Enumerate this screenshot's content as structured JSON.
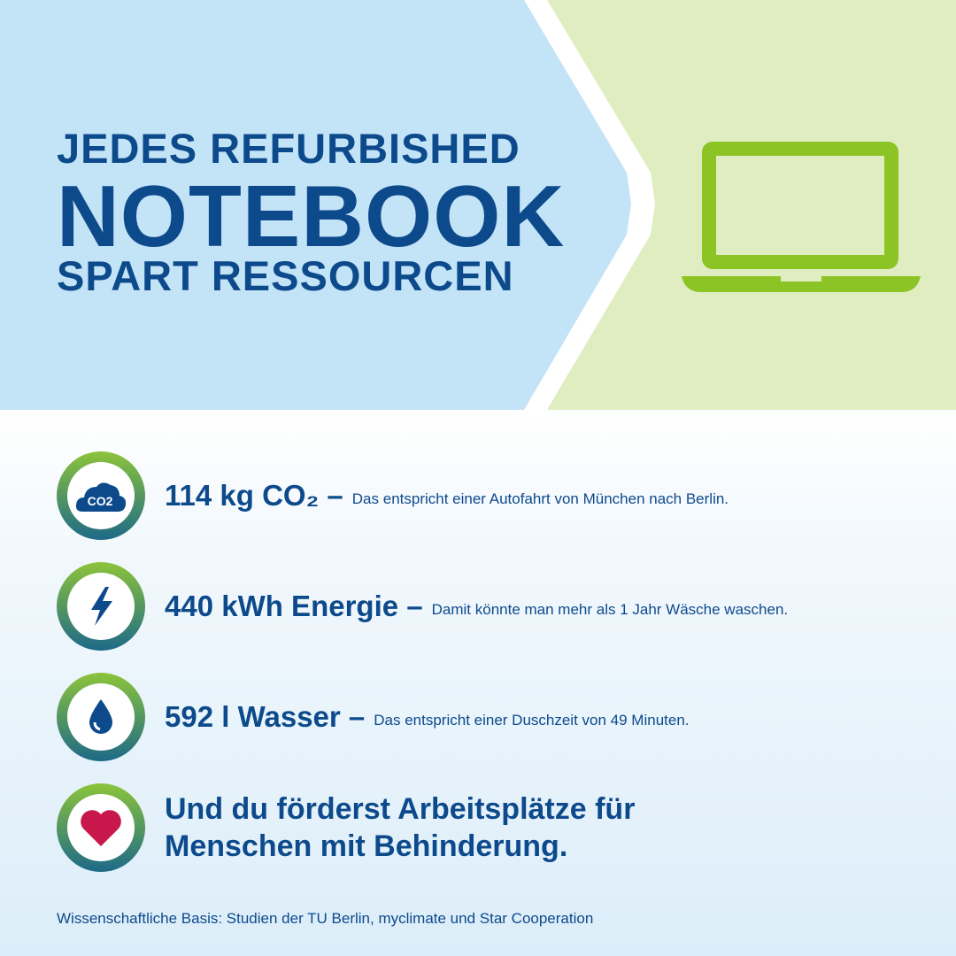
{
  "headline": {
    "line1": "JEDES REFURBISHED",
    "line2": "NOTEBOOK",
    "line3": "SPART RESSOURCEN"
  },
  "colors": {
    "navy": "#0d4a8c",
    "light_blue": "#c3e3f7",
    "light_green": "#dfedc0",
    "laptop_green": "#8cc425",
    "heart": "#c8174a"
  },
  "stats": [
    {
      "icon": "co2-cloud-icon",
      "value": "114 kg CO₂ –",
      "text": "Das entspricht einer Autofahrt von München nach Berlin.",
      "icon_label": "CO2"
    },
    {
      "icon": "lightning-icon",
      "value": "440 kWh Energie –",
      "text": "Damit könnte man mehr als 1 Jahr Wäsche waschen."
    },
    {
      "icon": "water-drop-icon",
      "value": "592 l Wasser –",
      "text": "Das entspricht einer Duschzeit von 49 Minuten."
    },
    {
      "icon": "heart-icon",
      "line1": "Und du förderst Arbeitsplätze für",
      "line2": "Menschen mit Behinderung."
    }
  ],
  "footer": "Wissenschaftliche Basis: Studien der TU Berlin, myclimate und Star Cooperation"
}
